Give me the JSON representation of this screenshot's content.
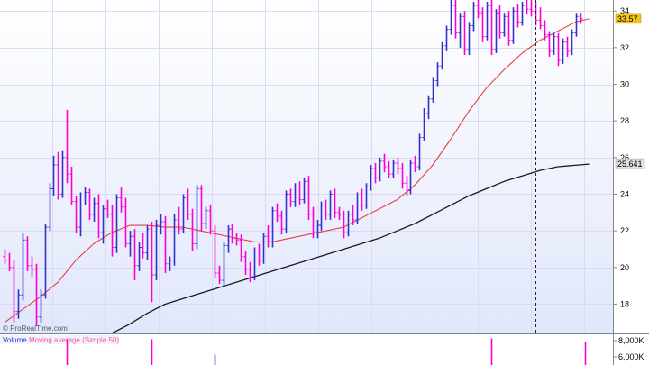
{
  "watermark": "© ProRealTime.com",
  "price_panel": {
    "y_ticks": [
      "18",
      "20",
      "22",
      "24",
      "26",
      "28",
      "30",
      "32",
      "34"
    ],
    "last_price_tag": "33.57",
    "ma_long_tag": "25.641"
  },
  "volume_panel": {
    "label": "Volume",
    "ma_label": "Moving average (Simple 50)",
    "y_ticks": [
      "8,000K",
      "6,000K"
    ]
  },
  "colors": {
    "bg_top": "#ffffff",
    "bg_bottom": "#e1e7fb",
    "grid": "#d8dcf0",
    "up_bar": "#3232c8",
    "down_bar": "#ff00d2",
    "ma_short": "#e84040",
    "ma_long": "#1a1a1a",
    "price_tag_bg": "#f5c518",
    "ma_tag_bg": "#e0e0e0",
    "volume_label": "#2b2bd0",
    "ma_label": "#ff4fa0"
  },
  "chart_data": {
    "type": "ohlc",
    "y_axis": {
      "min": 16.4,
      "max": 34.6,
      "ticks": [
        18,
        20,
        22,
        24,
        26,
        28,
        30,
        32,
        34
      ]
    },
    "bars": [
      [
        20.6,
        21.0,
        20.2,
        20.4
      ],
      [
        20.4,
        20.8,
        19.8,
        20.0
      ],
      [
        20.0,
        20.4,
        17.0,
        17.6
      ],
      [
        17.6,
        18.8,
        17.2,
        18.5
      ],
      [
        18.5,
        21.9,
        18.2,
        21.5
      ],
      [
        21.5,
        21.7,
        19.8,
        20.1
      ],
      [
        20.1,
        20.6,
        19.5,
        19.9
      ],
      [
        19.9,
        20.2,
        16.8,
        17.3
      ],
      [
        17.3,
        18.8,
        17.0,
        18.5
      ],
      [
        18.5,
        22.4,
        18.3,
        22.2
      ],
      [
        22.2,
        24.6,
        22.0,
        24.3
      ],
      [
        24.3,
        26.1,
        23.9,
        25.6
      ],
      [
        25.6,
        26.3,
        23.7,
        24.0
      ],
      [
        24.0,
        26.4,
        23.8,
        26.0
      ],
      [
        26.0,
        28.6,
        24.6,
        25.1
      ],
      [
        25.1,
        25.5,
        23.4,
        23.6
      ],
      [
        23.6,
        23.9,
        21.9,
        22.2
      ],
      [
        22.2,
        24.1,
        21.7,
        23.9
      ],
      [
        23.9,
        24.4,
        23.4,
        24.1
      ],
      [
        24.1,
        24.3,
        22.6,
        22.9
      ],
      [
        22.9,
        23.8,
        22.5,
        23.5
      ],
      [
        23.5,
        24.0,
        21.6,
        21.9
      ],
      [
        21.9,
        23.4,
        21.3,
        23.2
      ],
      [
        23.2,
        23.7,
        22.7,
        22.9
      ],
      [
        22.9,
        23.4,
        20.6,
        21.1
      ],
      [
        21.1,
        24.0,
        20.8,
        23.8
      ],
      [
        23.8,
        24.4,
        23.0,
        23.3
      ],
      [
        23.3,
        23.8,
        21.1,
        21.3
      ],
      [
        21.3,
        22.0,
        20.6,
        21.7
      ],
      [
        21.7,
        22.1,
        19.3,
        20.1
      ],
      [
        20.1,
        21.4,
        19.8,
        21.1
      ],
      [
        21.1,
        21.9,
        20.5,
        20.8
      ],
      [
        20.8,
        22.3,
        20.4,
        22.1
      ],
      [
        22.1,
        22.5,
        18.1,
        19.6
      ],
      [
        19.6,
        22.6,
        19.3,
        22.3
      ],
      [
        22.3,
        22.9,
        21.8,
        22.5
      ],
      [
        22.5,
        22.8,
        19.7,
        20.2
      ],
      [
        20.2,
        20.6,
        19.8,
        20.4
      ],
      [
        20.4,
        22.9,
        20.1,
        22.6
      ],
      [
        22.6,
        23.3,
        21.8,
        22.1
      ],
      [
        22.1,
        24.0,
        21.9,
        23.8
      ],
      [
        23.8,
        24.3,
        22.6,
        22.9
      ],
      [
        22.9,
        23.2,
        20.9,
        21.3
      ],
      [
        21.3,
        24.5,
        21.0,
        24.3
      ],
      [
        24.3,
        24.5,
        22.0,
        22.4
      ],
      [
        22.4,
        23.3,
        22.1,
        23.1
      ],
      [
        23.1,
        23.4,
        21.8,
        22.0
      ],
      [
        22.0,
        22.3,
        19.4,
        19.7
      ],
      [
        19.7,
        20.1,
        19.1,
        19.3
      ],
      [
        19.3,
        21.4,
        19.0,
        21.2
      ],
      [
        21.2,
        22.3,
        20.8,
        22.1
      ],
      [
        22.1,
        22.4,
        21.3,
        21.6
      ],
      [
        21.6,
        21.9,
        21.2,
        21.5
      ],
      [
        21.5,
        21.8,
        20.3,
        20.6
      ],
      [
        20.6,
        20.9,
        19.6,
        19.9
      ],
      [
        19.9,
        20.3,
        19.2,
        19.5
      ],
      [
        19.5,
        21.1,
        19.3,
        20.9
      ],
      [
        20.9,
        21.3,
        20.1,
        20.4
      ],
      [
        20.4,
        21.9,
        20.2,
        21.7
      ],
      [
        21.7,
        22.3,
        21.1,
        21.4
      ],
      [
        21.4,
        23.3,
        21.1,
        23.1
      ],
      [
        23.1,
        23.5,
        22.5,
        22.8
      ],
      [
        22.8,
        23.1,
        21.8,
        22.1
      ],
      [
        22.1,
        24.2,
        21.9,
        24.0
      ],
      [
        24.0,
        24.3,
        23.3,
        23.6
      ],
      [
        23.6,
        24.6,
        23.3,
        24.4
      ],
      [
        24.4,
        24.7,
        23.4,
        23.7
      ],
      [
        23.7,
        24.9,
        23.5,
        24.7
      ],
      [
        24.7,
        25.0,
        22.6,
        22.9
      ],
      [
        22.9,
        23.3,
        21.6,
        21.9
      ],
      [
        21.9,
        22.6,
        21.6,
        22.3
      ],
      [
        22.3,
        23.6,
        22.0,
        23.4
      ],
      [
        23.4,
        23.7,
        22.6,
        22.9
      ],
      [
        22.9,
        24.2,
        22.6,
        24.0
      ],
      [
        24.0,
        24.3,
        22.7,
        23.0
      ],
      [
        23.0,
        23.3,
        22.6,
        22.9
      ],
      [
        22.9,
        23.1,
        21.6,
        21.9
      ],
      [
        21.9,
        23.1,
        21.7,
        22.9
      ],
      [
        22.9,
        23.4,
        22.3,
        22.6
      ],
      [
        22.6,
        24.1,
        22.4,
        23.9
      ],
      [
        23.9,
        24.3,
        23.1,
        23.4
      ],
      [
        23.4,
        24.6,
        23.2,
        24.4
      ],
      [
        24.4,
        25.6,
        24.2,
        25.4
      ],
      [
        25.4,
        25.7,
        24.6,
        24.9
      ],
      [
        24.9,
        26.0,
        24.7,
        25.8
      ],
      [
        25.8,
        26.2,
        25.2,
        25.5
      ],
      [
        25.5,
        25.8,
        24.9,
        25.1
      ],
      [
        25.1,
        25.9,
        24.9,
        25.7
      ],
      [
        25.7,
        26.0,
        25.1,
        25.4
      ],
      [
        25.4,
        25.7,
        24.3,
        24.6
      ],
      [
        24.6,
        25.0,
        23.9,
        24.2
      ],
      [
        24.2,
        25.9,
        24.0,
        25.7
      ],
      [
        25.7,
        26.1,
        25.2,
        25.5
      ],
      [
        25.5,
        27.3,
        25.3,
        27.1
      ],
      [
        27.1,
        28.7,
        26.9,
        28.4
      ],
      [
        28.4,
        29.4,
        28.1,
        29.2
      ],
      [
        29.2,
        30.4,
        29.0,
        30.2
      ],
      [
        30.2,
        31.2,
        29.9,
        31.0
      ],
      [
        31.0,
        32.3,
        30.8,
        32.1
      ],
      [
        32.1,
        33.2,
        31.8,
        33.0
      ],
      [
        33.0,
        34.6,
        32.7,
        34.3
      ],
      [
        34.3,
        34.6,
        32.5,
        32.8
      ],
      [
        32.8,
        33.9,
        32.0,
        33.7
      ],
      [
        33.7,
        34.0,
        31.6,
        31.9
      ],
      [
        31.9,
        33.4,
        31.6,
        33.2
      ],
      [
        33.2,
        34.5,
        32.9,
        34.3
      ],
      [
        34.3,
        34.6,
        33.6,
        33.9
      ],
      [
        33.9,
        34.2,
        32.3,
        32.6
      ],
      [
        32.6,
        34.5,
        32.4,
        34.3
      ],
      [
        34.3,
        34.6,
        31.6,
        31.9
      ],
      [
        31.9,
        34.1,
        31.7,
        33.9
      ],
      [
        33.9,
        34.3,
        32.5,
        32.8
      ],
      [
        32.8,
        33.9,
        32.6,
        33.7
      ],
      [
        33.7,
        34.0,
        32.1,
        32.4
      ],
      [
        32.4,
        34.2,
        32.2,
        34.0
      ],
      [
        34.0,
        34.4,
        33.1,
        33.4
      ],
      [
        33.4,
        34.5,
        33.2,
        34.3
      ],
      [
        34.3,
        34.6,
        33.8,
        34.1
      ],
      [
        34.1,
        34.6,
        33.7,
        34.0
      ],
      [
        34.0,
        34.5,
        33.2,
        33.5
      ],
      [
        33.5,
        34.2,
        33.0,
        33.2
      ],
      [
        33.2,
        33.5,
        32.4,
        32.7
      ],
      [
        32.7,
        32.9,
        31.5,
        31.8
      ],
      [
        31.8,
        32.8,
        31.6,
        32.6
      ],
      [
        32.6,
        32.8,
        31.0,
        31.3
      ],
      [
        31.3,
        32.5,
        31.1,
        32.3
      ],
      [
        32.3,
        32.6,
        31.5,
        31.8
      ],
      [
        31.8,
        33.0,
        31.6,
        32.8
      ],
      [
        32.8,
        33.9,
        32.6,
        33.7
      ],
      [
        33.7,
        33.9,
        33.3,
        33.57
      ]
    ],
    "ma_short": [
      [
        0,
        17.0
      ],
      [
        8,
        18.4
      ],
      [
        12,
        19.2
      ],
      [
        16,
        20.4
      ],
      [
        20,
        21.3
      ],
      [
        24,
        21.9
      ],
      [
        28,
        22.3
      ],
      [
        32,
        22.3
      ],
      [
        36,
        22.2
      ],
      [
        40,
        22.2
      ],
      [
        44,
        22.0
      ],
      [
        48,
        21.8
      ],
      [
        52,
        21.6
      ],
      [
        56,
        21.4
      ],
      [
        60,
        21.4
      ],
      [
        64,
        21.6
      ],
      [
        68,
        21.8
      ],
      [
        72,
        22.0
      ],
      [
        76,
        22.2
      ],
      [
        80,
        22.7
      ],
      [
        84,
        23.2
      ],
      [
        88,
        23.7
      ],
      [
        92,
        24.5
      ],
      [
        96,
        25.6
      ],
      [
        100,
        27.0
      ],
      [
        104,
        28.5
      ],
      [
        108,
        29.8
      ],
      [
        112,
        30.8
      ],
      [
        116,
        31.7
      ],
      [
        120,
        32.4
      ],
      [
        124,
        32.9
      ],
      [
        128,
        33.4
      ],
      [
        131,
        33.57
      ]
    ],
    "ma_long": [
      [
        24,
        16.4
      ],
      [
        28,
        16.9
      ],
      [
        32,
        17.5
      ],
      [
        36,
        18.0
      ],
      [
        40,
        18.3
      ],
      [
        44,
        18.6
      ],
      [
        48,
        18.9
      ],
      [
        52,
        19.2
      ],
      [
        56,
        19.5
      ],
      [
        60,
        19.8
      ],
      [
        64,
        20.1
      ],
      [
        68,
        20.4
      ],
      [
        72,
        20.7
      ],
      [
        76,
        21.0
      ],
      [
        80,
        21.3
      ],
      [
        84,
        21.6
      ],
      [
        88,
        22.0
      ],
      [
        92,
        22.4
      ],
      [
        96,
        22.9
      ],
      [
        100,
        23.4
      ],
      [
        104,
        23.9
      ],
      [
        108,
        24.3
      ],
      [
        112,
        24.7
      ],
      [
        116,
        25.0
      ],
      [
        120,
        25.3
      ],
      [
        124,
        25.5
      ],
      [
        131,
        25.641
      ]
    ],
    "volume_spikes": [
      {
        "bar": 14,
        "value": 8200000,
        "dir": "down"
      },
      {
        "bar": 33,
        "value": 8200000,
        "dir": "down"
      },
      {
        "bar": 47,
        "value": 6300000,
        "dir": "up"
      },
      {
        "bar": 109,
        "value": 8300000,
        "dir": "down"
      },
      {
        "bar": 130,
        "value": 7800000,
        "dir": "down"
      }
    ],
    "volume_axis": {
      "min": 5000000,
      "max": 8800000,
      "ticks": [
        8000000,
        6000000
      ]
    },
    "cursor_bar": 119
  }
}
